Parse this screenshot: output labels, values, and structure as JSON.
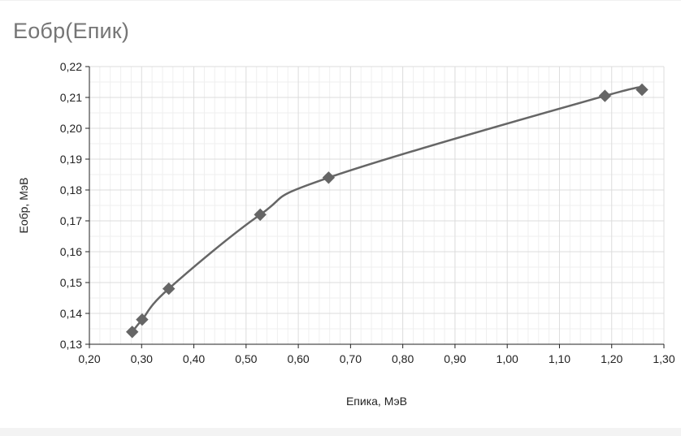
{
  "chart_data": {
    "type": "line",
    "title": "Еобр(Епик)",
    "xlabel": "Епика, МэВ",
    "ylabel": "Еобр, МэВ",
    "xlim": [
      0.2,
      1.3
    ],
    "ylim": [
      0.13,
      0.22
    ],
    "x_ticks": [
      "0,20",
      "0,30",
      "0,40",
      "0,50",
      "0,60",
      "0,70",
      "0,80",
      "0,90",
      "1,00",
      "1,10",
      "1,20",
      "1,30"
    ],
    "y_ticks": [
      "0,13",
      "0,14",
      "0,15",
      "0,16",
      "0,17",
      "0,18",
      "0,19",
      "0,20",
      "0,21",
      "0,22"
    ],
    "grid": true,
    "marker": "diamond",
    "series": [
      {
        "color": "#666666",
        "points": [
          {
            "x": 0.282,
            "y": 0.134
          },
          {
            "x": 0.301,
            "y": 0.138
          },
          {
            "x": 0.352,
            "y": 0.148
          },
          {
            "x": 0.527,
            "y": 0.172
          },
          {
            "x": 0.658,
            "y": 0.184
          },
          {
            "x": 1.187,
            "y": 0.2105
          },
          {
            "x": 1.258,
            "y": 0.2125
          }
        ]
      }
    ]
  }
}
